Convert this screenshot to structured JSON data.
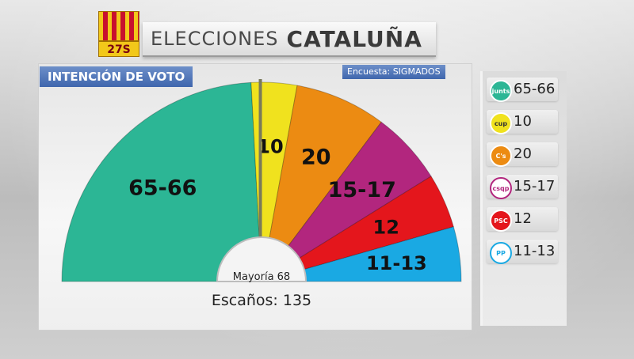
{
  "header": {
    "badge": "27S",
    "title_prefix": "ELECCIONES",
    "title_main": "CATALUÑA"
  },
  "panel": {
    "label": "INTENCIÓN DE VOTO",
    "survey": "Encuesta: SIGMADOS",
    "majority": "Mayoría 68",
    "seats": "Escaños: 135"
  },
  "colors": {
    "jxs": "#2cb695",
    "cup": "#f0e21e",
    "cs": "#ec8b12",
    "csqp": "#b2267e",
    "psc": "#e4161c",
    "pp": "#1aa9e3"
  },
  "chart_data": {
    "type": "pie",
    "layout": "hemicycle",
    "total_seats": 135,
    "majority": 68,
    "series": [
      {
        "label": "65-66",
        "value": 65.5,
        "color": "#2cb695",
        "logo": "jxs-logo"
      },
      {
        "label": "10",
        "value": 10,
        "color": "#f0e21e",
        "logo": "cup-logo"
      },
      {
        "label": "20",
        "value": 20,
        "color": "#ec8b12",
        "logo": "cs-logo"
      },
      {
        "label": "15-17",
        "value": 16,
        "color": "#b2267e",
        "logo": "csqp-logo"
      },
      {
        "label": "12",
        "value": 12,
        "color": "#e4161c",
        "logo": "psc-logo"
      },
      {
        "label": "11-13",
        "value": 12,
        "color": "#1aa9e3",
        "logo": "pp-logo"
      }
    ]
  },
  "legend": [
    {
      "value": "65-66",
      "logo_text": "junts",
      "color": "#2cb695",
      "text_color": "#ffffff"
    },
    {
      "value": "10",
      "logo_text": "cup",
      "color": "#f0e21e",
      "text_color": "#333333"
    },
    {
      "value": "20",
      "logo_text": "C's",
      "color": "#ec8b12",
      "text_color": "#ffffff"
    },
    {
      "value": "15-17",
      "logo_text": "csqp",
      "color": "#ffffff",
      "text_color": "#b2267e"
    },
    {
      "value": "12",
      "logo_text": "PSC",
      "color": "#e4161c",
      "text_color": "#ffffff"
    },
    {
      "value": "11-13",
      "logo_text": "PP",
      "color": "#ffffff",
      "text_color": "#1aa9e3"
    }
  ]
}
